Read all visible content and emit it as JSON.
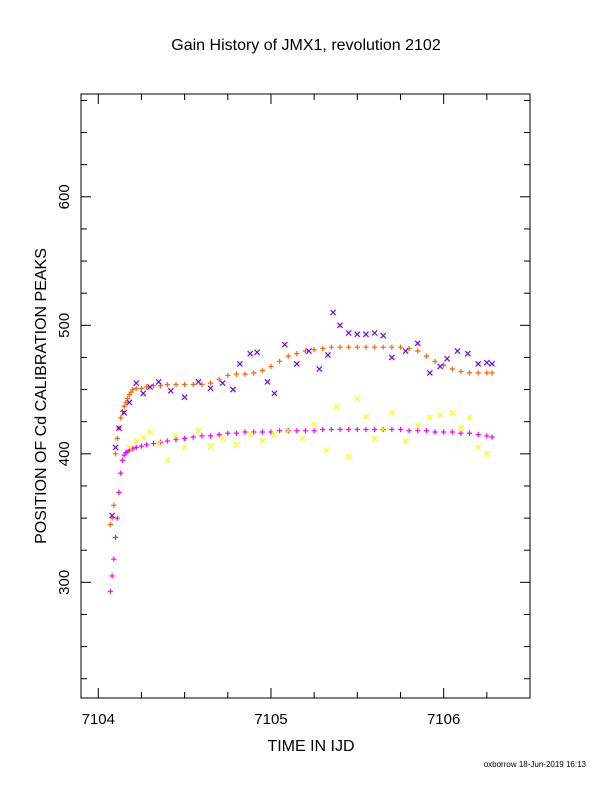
{
  "chart_data": {
    "type": "scatter",
    "title": "Gain History of JMX1, revolution 2102",
    "xlabel": "TIME IN IJD",
    "ylabel": "POSITION OF Cd CALIBRATION PEAKS",
    "xlim": [
      7103.9,
      7106.5
    ],
    "ylim": [
      210,
      680
    ],
    "xticks": [
      7104,
      7105,
      7106
    ],
    "yticks": [
      300,
      400,
      500,
      600
    ],
    "grid": false,
    "credit": "oxborrow 18-Jun-2019 16:13",
    "series": [
      {
        "color": "#ff6600",
        "marker": "plus",
        "x": [
          7104.07,
          7104.08,
          7104.09,
          7104.1,
          7104.11,
          7104.12,
          7104.13,
          7104.14,
          7104.15,
          7104.16,
          7104.17,
          7104.18,
          7104.19,
          7104.2,
          7104.22,
          7104.25,
          7104.28,
          7104.32,
          7104.36,
          7104.4,
          7104.45,
          7104.5,
          7104.55,
          7104.6,
          7104.65,
          7104.7,
          7104.75,
          7104.8,
          7104.85,
          7104.9,
          7104.95,
          7105.0,
          7105.05,
          7105.1,
          7105.15,
          7105.2,
          7105.25,
          7105.3,
          7105.35,
          7105.4,
          7105.45,
          7105.5,
          7105.55,
          7105.6,
          7105.65,
          7105.7,
          7105.75,
          7105.8,
          7105.85,
          7105.9,
          7105.95,
          7106.0,
          7106.05,
          7106.1,
          7106.15,
          7106.2,
          7106.25,
          7106.28
        ],
        "y": [
          345,
          350,
          360,
          400,
          412,
          420,
          428,
          433,
          437,
          440,
          443,
          446,
          448,
          450,
          451,
          451,
          452,
          453,
          453,
          454,
          454,
          454,
          454,
          454,
          455,
          458,
          461,
          462,
          462,
          463,
          465,
          468,
          472,
          476,
          478,
          480,
          481,
          482,
          483,
          483,
          483,
          483,
          483,
          483,
          483,
          483,
          483,
          482,
          480,
          476,
          472,
          469,
          466,
          464,
          463,
          463,
          463,
          463
        ]
      },
      {
        "color": "#ff00ff",
        "marker": "plus",
        "x": [
          7104.07,
          7104.08,
          7104.09,
          7104.1,
          7104.11,
          7104.12,
          7104.13,
          7104.14,
          7104.15,
          7104.16,
          7104.17,
          7104.18,
          7104.2,
          7104.22,
          7104.25,
          7104.28,
          7104.32,
          7104.36,
          7104.4,
          7104.45,
          7104.5,
          7104.55,
          7104.6,
          7104.65,
          7104.7,
          7104.75,
          7104.8,
          7104.85,
          7104.9,
          7104.95,
          7105.0,
          7105.05,
          7105.1,
          7105.15,
          7105.2,
          7105.25,
          7105.3,
          7105.35,
          7105.4,
          7105.45,
          7105.5,
          7105.55,
          7105.6,
          7105.65,
          7105.7,
          7105.75,
          7105.8,
          7105.85,
          7105.9,
          7105.95,
          7106.0,
          7106.05,
          7106.1,
          7106.15,
          7106.2,
          7106.25,
          7106.28
        ],
        "y": [
          293,
          305,
          318,
          335,
          350,
          370,
          385,
          395,
          399,
          401,
          402,
          403,
          404,
          405,
          406,
          407,
          408,
          409,
          410,
          411,
          412,
          413,
          414,
          414,
          415,
          416,
          416,
          417,
          417,
          417,
          417,
          418,
          418,
          418,
          418,
          418,
          419,
          419,
          419,
          419,
          419,
          419,
          419,
          419,
          419,
          419,
          418,
          418,
          418,
          417,
          417,
          417,
          416,
          416,
          415,
          414,
          413
        ]
      },
      {
        "color": "#7700ff",
        "marker": "cross",
        "x": [
          7104.08,
          7104.1,
          7104.12,
          7104.15,
          7104.18,
          7104.22,
          7104.26,
          7104.3,
          7104.35,
          7104.42,
          7104.5,
          7104.58,
          7104.65,
          7104.72,
          7104.78,
          7104.82,
          7104.88,
          7104.92,
          7104.98,
          7105.02,
          7105.08,
          7105.15,
          7105.22,
          7105.28,
          7105.33,
          7105.36,
          7105.4,
          7105.45,
          7105.5,
          7105.55,
          7105.6,
          7105.65,
          7105.7,
          7105.78,
          7105.85,
          7105.92,
          7105.98,
          7106.02,
          7106.08,
          7106.14,
          7106.2,
          7106.25,
          7106.28
        ],
        "y": [
          352,
          405,
          420,
          432,
          440,
          455,
          447,
          452,
          456,
          449,
          444,
          456,
          451,
          455,
          450,
          470,
          478,
          479,
          456,
          447,
          485,
          470,
          480,
          466,
          477,
          510,
          500,
          494,
          493,
          493,
          494,
          492,
          475,
          480,
          486,
          463,
          468,
          474,
          480,
          478,
          470,
          471,
          470
        ]
      },
      {
        "color": "#ffff00",
        "marker": "cross",
        "x": [
          7104.18,
          7104.22,
          7104.26,
          7104.3,
          7104.35,
          7104.4,
          7104.45,
          7104.5,
          7104.58,
          7104.65,
          7104.72,
          7104.8,
          7104.88,
          7104.95,
          7105.02,
          7105.1,
          7105.18,
          7105.25,
          7105.32,
          7105.38,
          7105.45,
          7105.5,
          7105.55,
          7105.6,
          7105.65,
          7105.7,
          7105.78,
          7105.85,
          7105.92,
          7105.98,
          7106.05,
          7106.1,
          7106.15,
          7106.2,
          7106.25
        ],
        "y": [
          405,
          410,
          413,
          417,
          408,
          395,
          414,
          405,
          418,
          406,
          412,
          407,
          415,
          410,
          415,
          418,
          412,
          423,
          403,
          437,
          398,
          443,
          429,
          412,
          419,
          432,
          410,
          422,
          428,
          430,
          432,
          420,
          428,
          405,
          400
        ]
      }
    ]
  }
}
